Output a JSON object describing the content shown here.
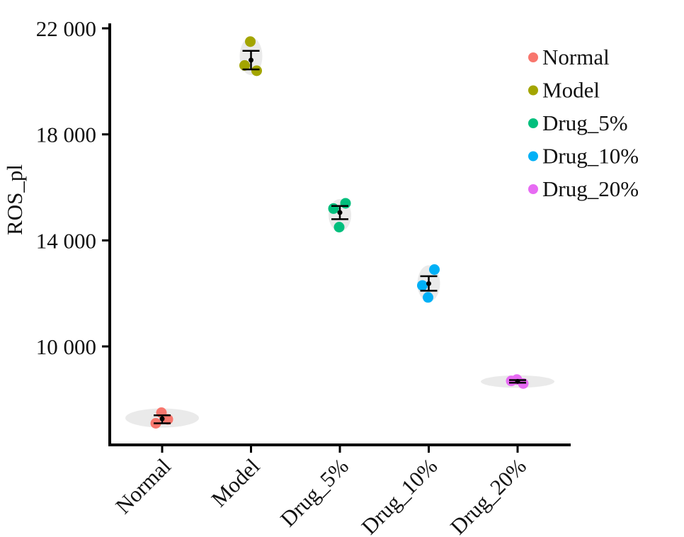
{
  "chart_data": {
    "type": "scatter",
    "title": "",
    "xlabel": "",
    "ylabel": "ROS_pl",
    "ylim": [
      6300,
      22200
    ],
    "yticks": [
      10000,
      14000,
      18000,
      22000
    ],
    "ytick_labels": [
      "10 000",
      "14 000",
      "18 000",
      "22 000"
    ],
    "categories": [
      "Normal",
      "Model",
      "Drug_5%",
      "Drug_10%",
      "Drug_20%"
    ],
    "legend_position": "top-right",
    "grid": false,
    "series": [
      {
        "name": "Normal",
        "color": "#f8766d",
        "points": [
          7100,
          7250,
          7500
        ],
        "mean": 7270,
        "error": [
          7100,
          7400
        ]
      },
      {
        "name": "Model",
        "color": "#a3a500",
        "points": [
          20600,
          20400,
          21500
        ],
        "mean": 20800,
        "error": [
          20450,
          21150
        ]
      },
      {
        "name": "Drug_5%",
        "color": "#00bf7d",
        "points": [
          15200,
          15400,
          14500
        ],
        "mean": 15050,
        "error": [
          14800,
          15300
        ]
      },
      {
        "name": "Drug_10%",
        "color": "#00b0f6",
        "points": [
          12300,
          12900,
          11850
        ],
        "mean": 12370,
        "error": [
          12100,
          12650
        ]
      },
      {
        "name": "Drug_20%",
        "color": "#e76bf3",
        "points": [
          8700,
          8600,
          8750
        ],
        "mean": 8680,
        "error": [
          8630,
          8730
        ]
      }
    ]
  }
}
